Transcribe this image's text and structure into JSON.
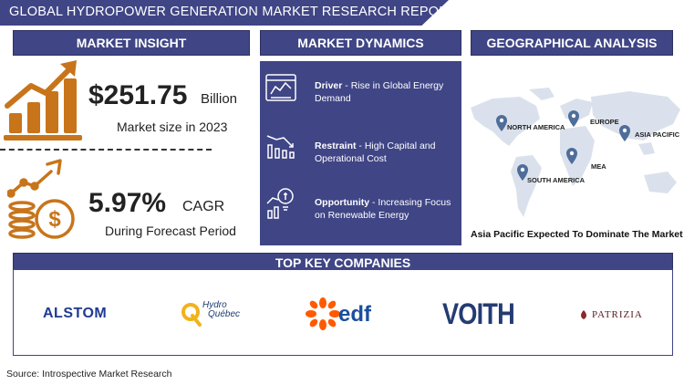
{
  "title": "GLOBAL HYDROPOWER GENERATION  MARKET RESEARCH REPORT",
  "sections": {
    "insight": "MARKET INSIGHT",
    "dynamics": "MARKET DYNAMICS",
    "geo": "GEOGRAPHICAL ANALYSIS",
    "companies": "TOP KEY COMPANIES"
  },
  "insight": {
    "market_size_value": "$251.75",
    "market_size_unit": "Billion",
    "market_size_label": "Market size in 2023",
    "cagr_value": "5.97%",
    "cagr_unit": "CAGR",
    "cagr_label": "During Forecast Period"
  },
  "dynamics": [
    {
      "title": "Driver",
      "text": " - Rise in Global Energy Demand",
      "icon": "chart-monitor-icon"
    },
    {
      "title": "Restraint",
      "text": " - High Capital and Operational Cost",
      "icon": "declining-chart-icon"
    },
    {
      "title": "Opportunity",
      "text": " - Increasing Focus on Renewable Energy",
      "icon": "growth-bulb-icon"
    }
  ],
  "geo": {
    "regions": [
      "NORTH AMERICA",
      "EUROPE",
      "ASIA PACIFIC",
      "MEA",
      "SOUTH AMERICA"
    ],
    "caption": "Asia Pacific Expected To Dominate The Market"
  },
  "companies": [
    {
      "name": "ALSTOM",
      "color": "#1f3a93"
    },
    {
      "name": "Hydro Québec",
      "line1": "Hydro",
      "line2": "Québec",
      "color": "#1e3a70",
      "accent": "#f2b21c"
    },
    {
      "name": "EDF",
      "text": "edf",
      "color": "#1b4f9c",
      "accent": "#ff5a00"
    },
    {
      "name": "VOITH",
      "color": "#243b73"
    },
    {
      "name": "PATRIZIA",
      "color": "#5a1b1b"
    }
  ],
  "source": "Source: Introspective Market Research",
  "colors": {
    "navy": "#3f4585",
    "orange": "#c8741a",
    "pin": "#4e6d9a"
  }
}
